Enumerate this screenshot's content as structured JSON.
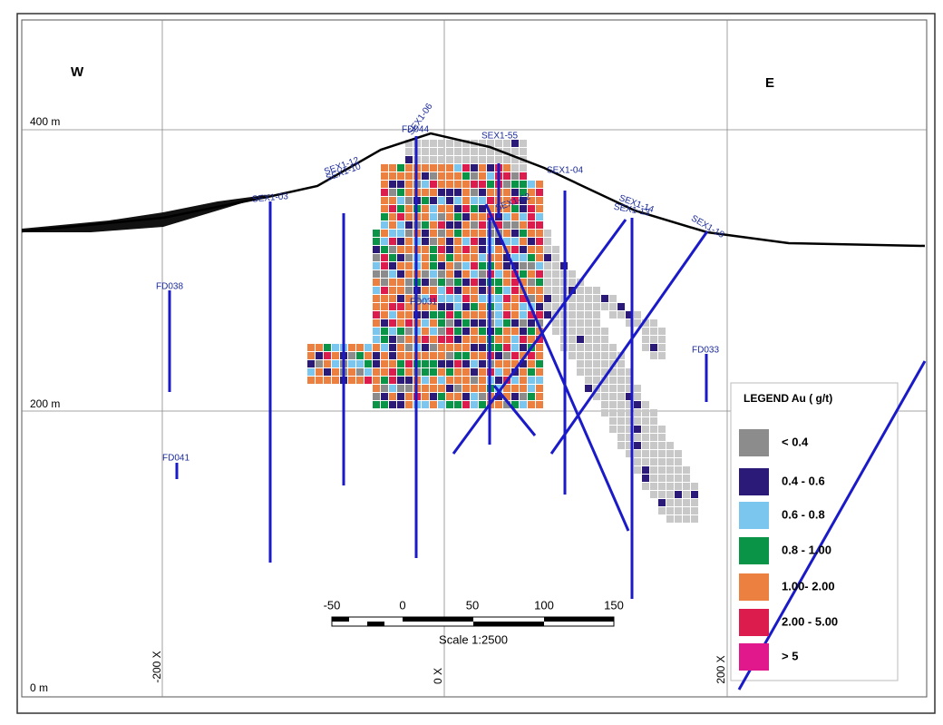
{
  "compass": {
    "west": "W",
    "east": "E"
  },
  "elevation_labels": [
    "400 m",
    "200 m",
    "0 m"
  ],
  "easting_labels": [
    "-200 X",
    "0 X",
    "200 X"
  ],
  "drill_holes": [
    "FD044",
    "SEX1-06",
    "SEX1-55",
    "SEX1-12",
    "SEX1-10",
    "SEX1-04",
    "SEX1-62",
    "SEX1-14",
    "SEX1-13",
    "SEX1-18",
    "SEX1-03",
    "FD038",
    "FD031",
    "FD033",
    "FD041"
  ],
  "scale": {
    "ticks": [
      "-50",
      "0",
      "50",
      "100",
      "150"
    ],
    "label": "Scale 1:2500"
  },
  "legend": {
    "title": "LEGEND  Au ( g/t)",
    "items": [
      {
        "label": "<  0.4",
        "color": "#8c8c8c"
      },
      {
        "label": "0.4 - 0.6",
        "color": "#2b1a78"
      },
      {
        "label": "0.6 - 0.8",
        "color": "#7ac6ee"
      },
      {
        "label": "0.8 - 1.00",
        "color": "#0a9448"
      },
      {
        "label": "1.00- 2.00",
        "color": "#ec8040"
      },
      {
        "label": "2.00 - 5.00",
        "color": "#dc1c4c"
      },
      {
        "label": "> 5",
        "color": "#e0188c"
      }
    ]
  }
}
